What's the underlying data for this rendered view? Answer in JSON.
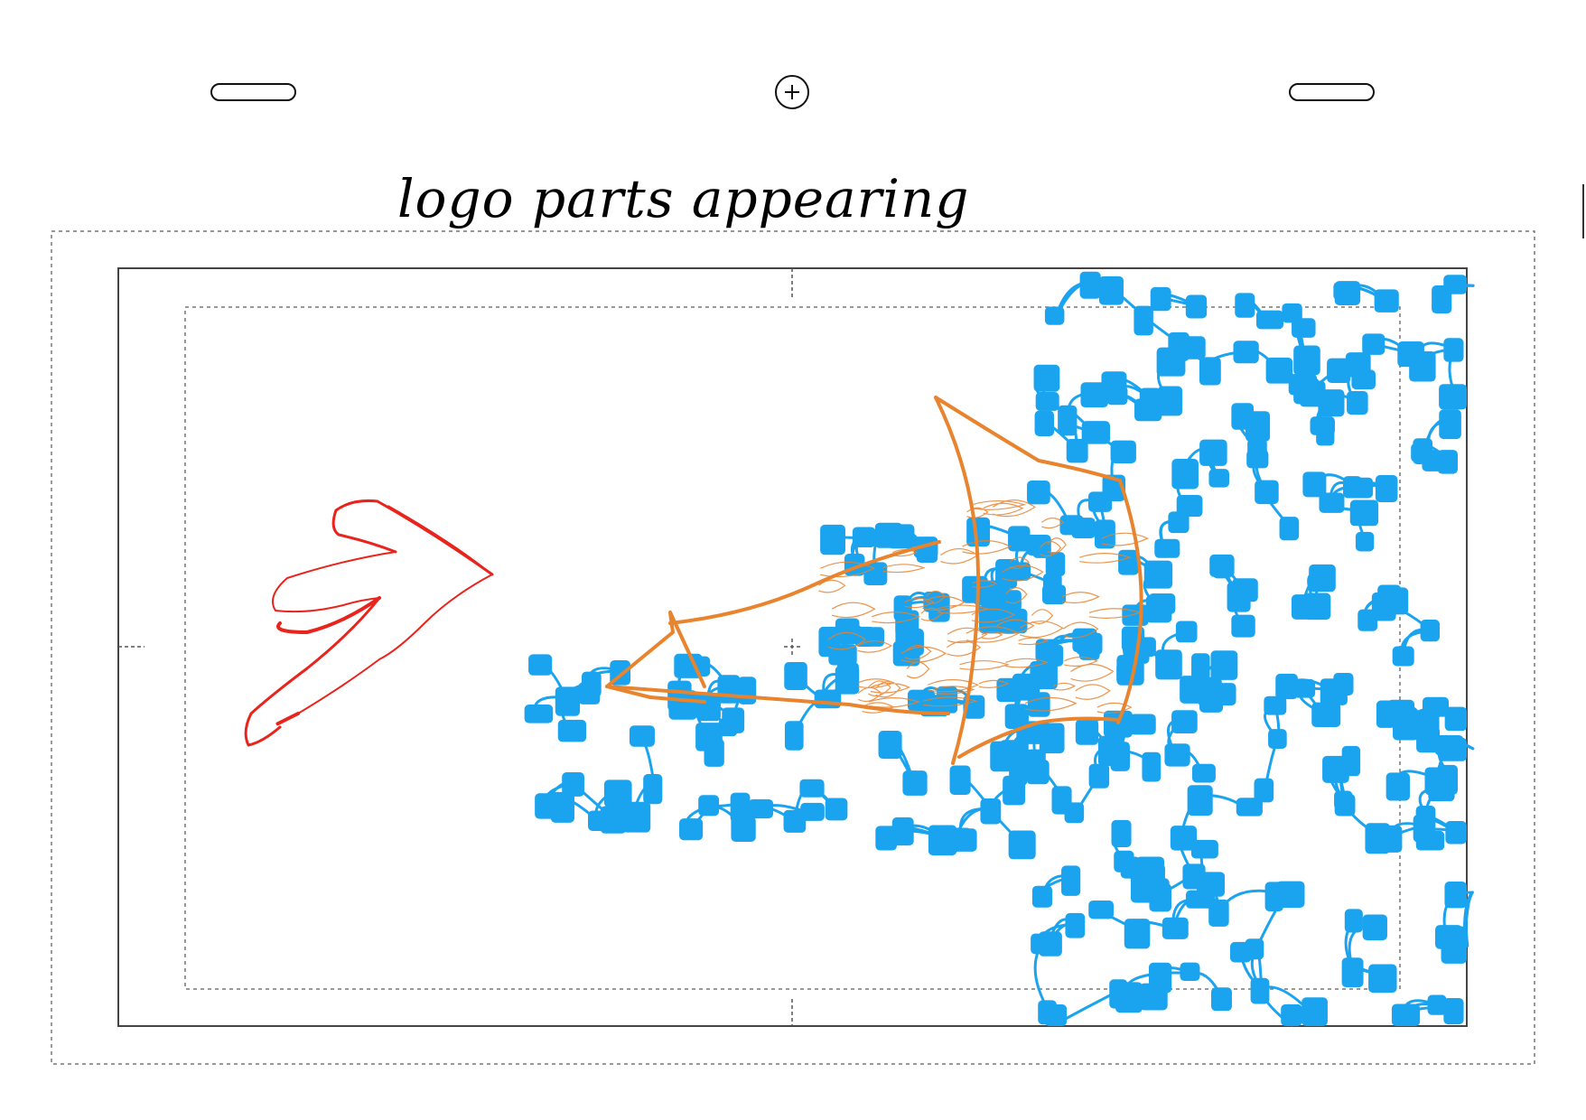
{
  "caption": "logo parts appearing",
  "colors": {
    "background": "#ffffff",
    "frame": "#444444",
    "guide": "#777777",
    "arrow": "#e8241c",
    "shape": "#e8832e",
    "particles": "#1aa3ef"
  },
  "controls": {
    "left_handle": "rounded-pill-handle",
    "center_handle": "plus-circle-icon",
    "right_handle": "rounded-pill-handle"
  }
}
